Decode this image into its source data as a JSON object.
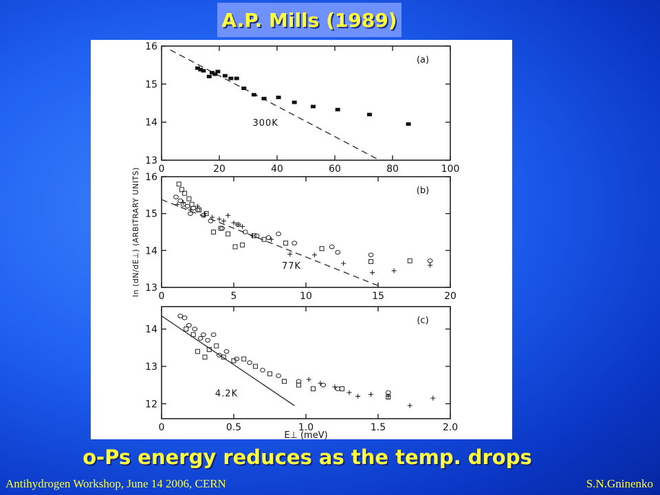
{
  "slide": {
    "title": "A.P. Mills (1989)",
    "caption": "o-Ps energy reduces as the temp. drops",
    "footer_left": "Antihydrogen Workshop, June 14 2006, CERN",
    "footer_right": "S.N.Gninenko"
  },
  "chart_data": [
    {
      "type": "scatter",
      "panel_label": "(a)",
      "xlim": [
        0,
        100
      ],
      "ylim": [
        13,
        16
      ],
      "xticks": [
        0,
        20,
        40,
        60,
        80,
        100
      ],
      "yticks": [
        13,
        14,
        15,
        16
      ],
      "ylabel": "",
      "xlabel": "",
      "series": [
        {
          "marker": "filled-square",
          "x": [
            12.5,
            13.5,
            14.5,
            16.5,
            17.5,
            18.5,
            19.5,
            22,
            24,
            26,
            28.5,
            32,
            35.5,
            40.5,
            46,
            52.5,
            61,
            72,
            85.5
          ],
          "y": [
            15.42,
            15.38,
            15.35,
            15.2,
            15.3,
            15.26,
            15.33,
            15.22,
            15.15,
            15.15,
            14.89,
            14.72,
            14.62,
            14.65,
            14.52,
            14.41,
            14.33,
            14.2,
            13.95
          ]
        }
      ],
      "fit_line": {
        "style": "dashed",
        "x": [
          3,
          75.5
        ],
        "y": [
          15.9,
          13.0
        ]
      },
      "annotation": {
        "text": "300K",
        "x": 36,
        "y": 13.9
      }
    },
    {
      "type": "scatter",
      "panel_label": "(b)",
      "xlim": [
        0,
        20
      ],
      "ylim": [
        13,
        16
      ],
      "xticks": [
        0,
        5,
        10,
        15,
        20
      ],
      "yticks": [
        13,
        14,
        15,
        16
      ],
      "ylabel": "ln (dN/dE⊥) (ARBITRARY UNITS)",
      "xlabel": "",
      "series": [
        {
          "marker": "open-square",
          "x": [
            1.2,
            1.4,
            1.6,
            1.9,
            2.1,
            2.6,
            3.1,
            3.6,
            4.1,
            4.6,
            5.1,
            5.6,
            6.4,
            7.1,
            8.6,
            11.1,
            14.5,
            17.2
          ],
          "y": [
            15.8,
            15.65,
            15.55,
            15.4,
            15.25,
            15.1,
            15.0,
            14.5,
            14.6,
            14.45,
            14.1,
            14.15,
            14.4,
            14.3,
            14.2,
            14.05,
            13.7,
            13.72
          ]
        },
        {
          "marker": "open-circle",
          "x": [
            1.0,
            1.3,
            1.5,
            1.8,
            2.0,
            2.2,
            2.5,
            2.9,
            3.4,
            4.2,
            5.3,
            5.8,
            6.6,
            7.4,
            8.1,
            9.2,
            11.8,
            12.2,
            14.5,
            18.6
          ],
          "y": [
            15.45,
            15.35,
            15.25,
            15.2,
            15.0,
            15.15,
            15.1,
            14.95,
            14.8,
            14.6,
            14.7,
            14.5,
            14.4,
            14.35,
            14.45,
            14.2,
            14.1,
            13.95,
            13.88,
            13.72
          ]
        },
        {
          "marker": "plus",
          "x": [
            1.1,
            1.5,
            2.0,
            2.5,
            3.0,
            3.5,
            4.0,
            4.3,
            4.6,
            5.0,
            5.3,
            5.6,
            6.3,
            7.6,
            8.9,
            10.6,
            12.6,
            14.6,
            16.1,
            18.6
          ],
          "y": [
            15.25,
            15.3,
            15.1,
            15.2,
            15.0,
            14.9,
            14.85,
            14.8,
            14.95,
            14.75,
            14.7,
            14.65,
            14.4,
            14.3,
            13.9,
            13.88,
            13.65,
            13.4,
            13.45,
            13.6
          ]
        }
      ],
      "fit_line": {
        "style": "dashed",
        "x": [
          0,
          15.3
        ],
        "y": [
          15.38,
          13.0
        ]
      },
      "annotation": {
        "text": "77K",
        "x": 9,
        "y": 13.5
      }
    },
    {
      "type": "scatter",
      "panel_label": "(c)",
      "xlim": [
        0,
        2.0
      ],
      "ylim": [
        11.6,
        14.6
      ],
      "xticks": [
        0,
        0.5,
        1.0,
        1.5,
        2.0
      ],
      "xtick_labels": [
        "0",
        "0.5",
        "1.0",
        "1.5",
        "2.0"
      ],
      "yticks": [
        12,
        13,
        14
      ],
      "xlabel": "E⊥ (meV)",
      "ylabel": "",
      "series": [
        {
          "marker": "open-square",
          "x": [
            0.17,
            0.22,
            0.25,
            0.3,
            0.33,
            0.38,
            0.43,
            0.5,
            0.57,
            0.65,
            0.75,
            0.85,
            0.95,
            1.05,
            1.25,
            1.57
          ],
          "y": [
            14.0,
            13.85,
            13.4,
            13.25,
            13.45,
            13.55,
            13.25,
            13.15,
            13.2,
            13.0,
            12.8,
            12.6,
            12.5,
            12.4,
            12.4,
            12.18
          ]
        },
        {
          "marker": "open-circle",
          "x": [
            0.13,
            0.16,
            0.19,
            0.23,
            0.27,
            0.29,
            0.32,
            0.36,
            0.4,
            0.45,
            0.52,
            0.61,
            0.7,
            0.81,
            0.95,
            1.12,
            1.22,
            1.57
          ],
          "y": [
            14.35,
            14.3,
            14.1,
            14.0,
            13.75,
            13.85,
            13.7,
            13.85,
            13.3,
            13.4,
            13.2,
            13.1,
            12.9,
            12.75,
            12.6,
            12.5,
            12.4,
            12.3
          ]
        },
        {
          "marker": "plus",
          "x": [
            1.02,
            1.1,
            1.2,
            1.3,
            1.36,
            1.45,
            1.57,
            1.72,
            1.88
          ],
          "y": [
            12.65,
            12.55,
            12.45,
            12.3,
            12.2,
            12.25,
            12.2,
            11.95,
            12.15
          ]
        }
      ],
      "fit_line": {
        "style": "solid",
        "x": [
          0,
          0.92
        ],
        "y": [
          14.35,
          11.95
        ]
      },
      "annotation": {
        "text": "4.2K",
        "x": 0.45,
        "y": 12.2
      }
    }
  ]
}
